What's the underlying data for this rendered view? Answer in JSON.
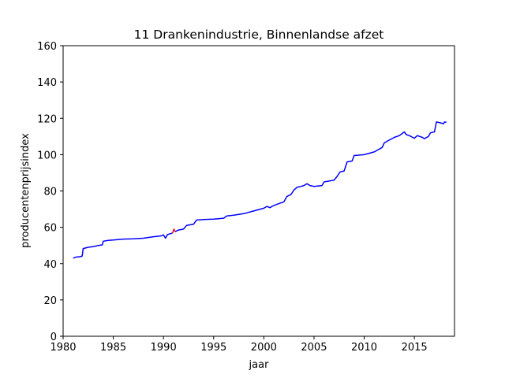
{
  "chart_data": {
    "type": "line",
    "title": "11 Drankenindustrie, Binnenlandse afzet",
    "xlabel": "jaar",
    "ylabel": "producentenprijsindex",
    "xlim": [
      1980,
      2019
    ],
    "ylim": [
      0,
      160
    ],
    "xticks": [
      1980,
      1985,
      1990,
      1995,
      2000,
      2005,
      2010,
      2015
    ],
    "yticks": [
      0,
      20,
      40,
      60,
      80,
      100,
      120,
      140,
      160
    ],
    "grid": false,
    "series": [
      {
        "color": "#0000ff",
        "points": [
          [
            1981.0,
            43.0
          ],
          [
            1981.3,
            43.6
          ],
          [
            1981.7,
            43.8
          ],
          [
            1981.9,
            44.2
          ],
          [
            1982.0,
            48.3
          ],
          [
            1982.5,
            49.0
          ],
          [
            1983.0,
            49.4
          ],
          [
            1983.5,
            50.0
          ],
          [
            1983.9,
            50.3
          ],
          [
            1984.0,
            52.3
          ],
          [
            1984.5,
            52.8
          ],
          [
            1985.0,
            53.0
          ],
          [
            1986.0,
            53.5
          ],
          [
            1987.0,
            53.7
          ],
          [
            1988.0,
            54.0
          ],
          [
            1989.0,
            54.8
          ],
          [
            1989.8,
            55.3
          ],
          [
            1990.0,
            55.8
          ],
          [
            1990.2,
            54.0
          ],
          [
            1990.4,
            56.0
          ],
          [
            1990.7,
            56.5
          ],
          [
            1990.9,
            56.8
          ]
        ]
      },
      {
        "color": "#ff0000",
        "points": [
          [
            1990.9,
            56.8
          ],
          [
            1991.05,
            59.0
          ],
          [
            1991.15,
            57.6
          ]
        ]
      },
      {
        "color": "#0000ff",
        "points": [
          [
            1991.15,
            57.6
          ],
          [
            1991.5,
            58.5
          ],
          [
            1992.0,
            59.0
          ],
          [
            1992.3,
            61.0
          ],
          [
            1993.0,
            61.7
          ],
          [
            1993.3,
            64.0
          ],
          [
            1994.0,
            64.3
          ],
          [
            1995.0,
            64.5
          ],
          [
            1996.0,
            65.0
          ],
          [
            1996.3,
            66.2
          ],
          [
            1997.0,
            66.7
          ],
          [
            1998.0,
            67.5
          ],
          [
            1999.0,
            69.0
          ],
          [
            2000.0,
            70.5
          ],
          [
            2000.3,
            71.5
          ],
          [
            2000.6,
            70.8
          ],
          [
            2001.0,
            72.0
          ],
          [
            2001.5,
            73.0
          ],
          [
            2002.0,
            74.0
          ],
          [
            2002.3,
            77.0
          ],
          [
            2002.7,
            78.0
          ],
          [
            2003.0,
            80.5
          ],
          [
            2003.3,
            82.0
          ],
          [
            2003.7,
            82.5
          ],
          [
            2004.0,
            83.0
          ],
          [
            2004.3,
            84.0
          ],
          [
            2004.6,
            83.0
          ],
          [
            2005.0,
            82.5
          ],
          [
            2005.8,
            83.0
          ],
          [
            2006.0,
            85.0
          ],
          [
            2007.0,
            86.0
          ],
          [
            2007.3,
            88.0
          ],
          [
            2007.6,
            90.5
          ],
          [
            2008.0,
            91.0
          ],
          [
            2008.3,
            96.0
          ],
          [
            2008.8,
            96.5
          ],
          [
            2009.0,
            99.5
          ],
          [
            2010.0,
            100.0
          ],
          [
            2011.0,
            101.5
          ],
          [
            2011.8,
            104.0
          ],
          [
            2012.0,
            106.5
          ],
          [
            2012.5,
            108.0
          ],
          [
            2013.0,
            109.5
          ],
          [
            2013.5,
            110.5
          ],
          [
            2014.0,
            112.5
          ],
          [
            2014.2,
            111.0
          ],
          [
            2014.5,
            110.5
          ],
          [
            2015.0,
            109.0
          ],
          [
            2015.3,
            110.5
          ],
          [
            2015.8,
            109.5
          ],
          [
            2016.0,
            108.8
          ],
          [
            2016.4,
            110.0
          ],
          [
            2016.6,
            112.0
          ],
          [
            2017.0,
            112.5
          ],
          [
            2017.2,
            118.0
          ],
          [
            2017.6,
            117.5
          ],
          [
            2017.9,
            117.0
          ],
          [
            2018.0,
            118.0
          ],
          [
            2018.2,
            117.8
          ]
        ]
      }
    ]
  }
}
